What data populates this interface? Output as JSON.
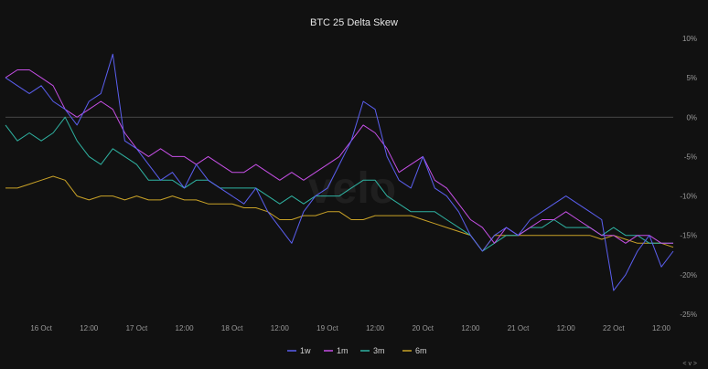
{
  "chart_data": {
    "type": "line",
    "title": "BTC 25 Delta Skew",
    "watermark": "velo",
    "footer": "< v >",
    "x_ticks": [
      "16 Oct",
      "12:00",
      "17 Oct",
      "12:00",
      "18 Oct",
      "12:00",
      "19 Oct",
      "12:00",
      "20 Oct",
      "12:00",
      "21 Oct",
      "12:00",
      "22 Oct",
      "12:00"
    ],
    "x_tick_hours": [
      0,
      12,
      24,
      36,
      48,
      60,
      72,
      84,
      96,
      108,
      120,
      132,
      144,
      156
    ],
    "xlim_hours": [
      -9,
      159
    ],
    "y_ticks": [
      "10%",
      "5%",
      "0%",
      "-5%",
      "-10%",
      "-15%",
      "-20%",
      "-25%"
    ],
    "y_tick_values": [
      10,
      5,
      0,
      -5,
      -10,
      -15,
      -20,
      -25
    ],
    "ylim": [
      -25,
      10
    ],
    "zero_line": 0,
    "legend_position": "bottom",
    "series": [
      {
        "name": "1w",
        "color": "#5b5ff0",
        "x": [
          -9,
          -6,
          -3,
          0,
          3,
          6,
          9,
          12,
          15,
          18,
          21,
          24,
          27,
          30,
          33,
          36,
          39,
          42,
          45,
          48,
          51,
          54,
          57,
          60,
          63,
          66,
          69,
          72,
          75,
          78,
          81,
          84,
          87,
          90,
          93,
          96,
          99,
          102,
          105,
          108,
          111,
          114,
          117,
          120,
          123,
          126,
          129,
          132,
          135,
          138,
          141,
          144,
          147,
          150,
          153,
          156,
          159
        ],
        "values": [
          5,
          4,
          3,
          4,
          2,
          1,
          -1,
          2,
          3,
          8,
          -3,
          -4,
          -6,
          -8,
          -7,
          -9,
          -6,
          -8,
          -9,
          -10,
          -11,
          -9,
          -12,
          -14,
          -16,
          -12,
          -10,
          -9,
          -6,
          -3,
          2,
          1,
          -5,
          -8,
          -9,
          -5,
          -9,
          -10,
          -12,
          -15,
          -17,
          -15,
          -14,
          -15,
          -13,
          -12,
          -11,
          -10,
          -11,
          -12,
          -13,
          -22,
          -20,
          -17,
          -15,
          -19,
          -17
        ]
      },
      {
        "name": "1m",
        "color": "#c64fe6",
        "x": [
          -9,
          -6,
          -3,
          0,
          3,
          6,
          9,
          12,
          15,
          18,
          21,
          24,
          27,
          30,
          33,
          36,
          39,
          42,
          45,
          48,
          51,
          54,
          57,
          60,
          63,
          66,
          69,
          72,
          75,
          78,
          81,
          84,
          87,
          90,
          93,
          96,
          99,
          102,
          105,
          108,
          111,
          114,
          117,
          120,
          123,
          126,
          129,
          132,
          135,
          138,
          141,
          144,
          147,
          150,
          153,
          156,
          159
        ],
        "values": [
          5,
          6,
          6,
          5,
          4,
          1,
          0,
          1,
          2,
          1,
          -2,
          -4,
          -5,
          -4,
          -5,
          -5,
          -6,
          -5,
          -6,
          -7,
          -7,
          -6,
          -7,
          -8,
          -7,
          -8,
          -7,
          -6,
          -5,
          -3,
          -1,
          -2,
          -4,
          -7,
          -6,
          -5,
          -8,
          -9,
          -11,
          -13,
          -14,
          -16,
          -14,
          -15,
          -14,
          -13,
          -13,
          -12,
          -13,
          -14,
          -15,
          -15,
          -16,
          -15,
          -15,
          -16,
          -16
        ]
      },
      {
        "name": "3m",
        "color": "#2fb3a2",
        "x": [
          -9,
          -6,
          -3,
          0,
          3,
          6,
          9,
          12,
          15,
          18,
          21,
          24,
          27,
          30,
          33,
          36,
          39,
          42,
          45,
          48,
          51,
          54,
          57,
          60,
          63,
          66,
          69,
          72,
          75,
          78,
          81,
          84,
          87,
          90,
          93,
          96,
          99,
          102,
          105,
          108,
          111,
          114,
          117,
          120,
          123,
          126,
          129,
          132,
          135,
          138,
          141,
          144,
          147,
          150,
          153,
          156,
          159
        ],
        "values": [
          -1,
          -3,
          -2,
          -3,
          -2,
          0,
          -3,
          -5,
          -6,
          -4,
          -5,
          -6,
          -8,
          -8,
          -8,
          -9,
          -8,
          -8,
          -9,
          -9,
          -9,
          -9,
          -10,
          -11,
          -10,
          -11,
          -10,
          -10,
          -10,
          -9,
          -8,
          -8,
          -10,
          -11,
          -12,
          -12,
          -12,
          -13,
          -14,
          -15,
          -17,
          -16,
          -15,
          -15,
          -14,
          -14,
          -13,
          -14,
          -14,
          -14,
          -15,
          -14,
          -15,
          -15,
          -16,
          -16,
          -16
        ]
      },
      {
        "name": "6m",
        "color": "#c9a227",
        "x": [
          -9,
          -6,
          -3,
          0,
          3,
          6,
          9,
          12,
          15,
          18,
          21,
          24,
          27,
          30,
          33,
          36,
          39,
          42,
          45,
          48,
          51,
          54,
          57,
          60,
          63,
          66,
          69,
          72,
          75,
          78,
          81,
          84,
          87,
          90,
          93,
          96,
          99,
          102,
          105,
          108,
          111,
          114,
          117,
          120,
          123,
          126,
          129,
          132,
          135,
          138,
          141,
          144,
          147,
          150,
          153,
          156,
          159
        ],
        "values": [
          -9,
          -9,
          -8.5,
          -8,
          -7.5,
          -8,
          -10,
          -10.5,
          -10,
          -10,
          -10.5,
          -10,
          -10.5,
          -10.5,
          -10,
          -10.5,
          -10.5,
          -11,
          -11,
          -11,
          -11.5,
          -11.5,
          -12,
          -13,
          -13,
          -12.5,
          -12.5,
          -12,
          -12,
          -13,
          -13,
          -12.5,
          -12.5,
          -12.5,
          -12.5,
          -13,
          -13.5,
          -14,
          -14.5,
          -15,
          -17,
          -15,
          -15,
          -15,
          -15,
          -15,
          -15,
          -15,
          -15,
          -15,
          -15.5,
          -15,
          -15.5,
          -16,
          -16,
          -16,
          -16.5
        ]
      }
    ]
  }
}
